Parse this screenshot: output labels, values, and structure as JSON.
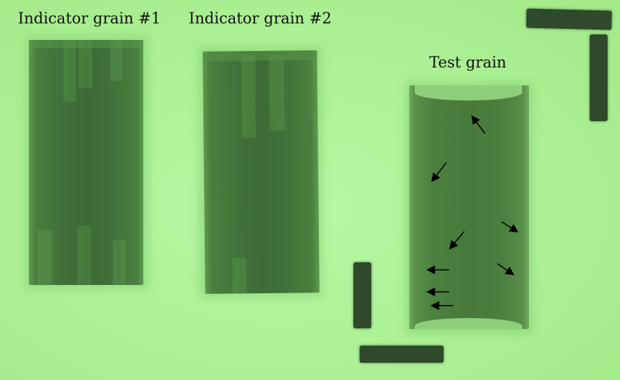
{
  "labels": {
    "indicator1": "Indicator grain #1",
    "indicator2": "Indicator grain #2",
    "test": "Test grain"
  },
  "colors": {
    "background": "#aef297",
    "grain_dark": "#3f6a34",
    "bar": "#2f4a2a",
    "arrow": "#000000"
  },
  "grains": [
    "indicator-grain-1",
    "indicator-grain-2",
    "test-grain"
  ],
  "arrow_count": 8,
  "bar_count": 4
}
